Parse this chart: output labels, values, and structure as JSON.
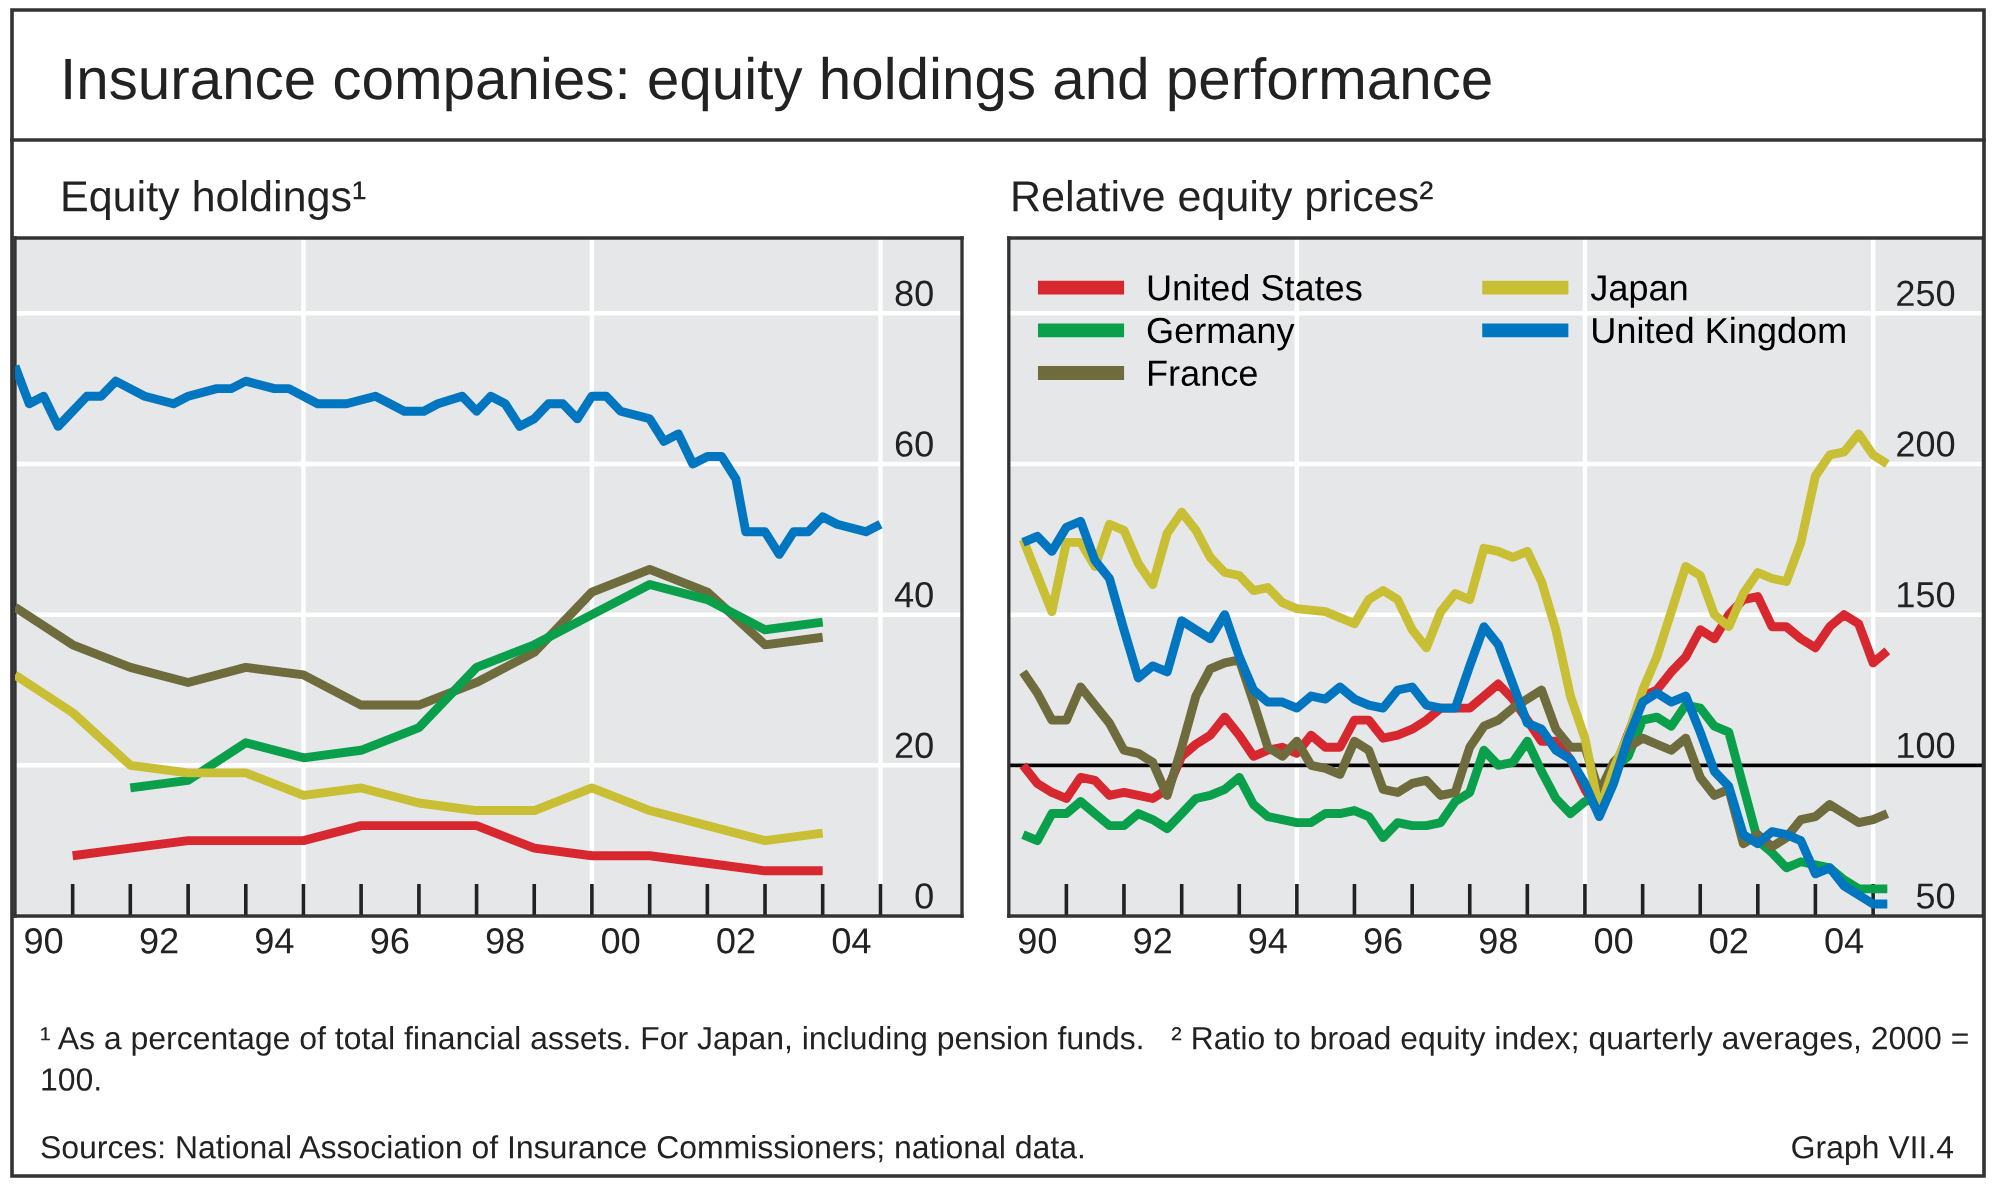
{
  "chart_data": [
    {
      "type": "line",
      "title": "Insurance companies: equity holdings and performance",
      "subtitle": "Equity holdings¹",
      "xlim": [
        "1990-01-01",
        "2006-06-01"
      ],
      "ylim": [
        0,
        90
      ],
      "yticks": [
        0,
        20,
        40,
        60,
        80
      ],
      "xticks": [
        {
          "value": "1990-07",
          "label": "90"
        },
        {
          "value": "1992-07",
          "label": "92"
        },
        {
          "value": "1994-07",
          "label": "94"
        },
        {
          "value": "1996-07",
          "label": "96"
        },
        {
          "value": "1998-07",
          "label": "98"
        },
        {
          "value": "2000-07",
          "label": "00"
        },
        {
          "value": "2002-07",
          "label": "02"
        },
        {
          "value": "2004-07",
          "label": "04"
        }
      ],
      "grid": "y",
      "marker": "none",
      "line_style": "solid",
      "ref_lines": [
        {
          "axis": "x",
          "value": "1995",
          "color": "#ffffff"
        },
        {
          "axis": "x",
          "value": "2000",
          "color": "#ffffff"
        },
        {
          "axis": "x",
          "value": "2005",
          "color": "#ffffff"
        }
      ],
      "series": [
        {
          "color": "#0076c0",
          "x": [
            "1990-01",
            "1990-04",
            "1990-07",
            "1990-10",
            "1991-04",
            "1991-07",
            "1991-10",
            "1992-04",
            "1992-10",
            "1993-01",
            "1993-07",
            "1993-10",
            "1994-01",
            "1994-07",
            "1994-10",
            "1995-04",
            "1995-10",
            "1996-04",
            "1996-10",
            "1997-02",
            "1997-05",
            "1997-10",
            "1998-01",
            "1998-04",
            "1998-07",
            "1998-10",
            "1999-01",
            "1999-04",
            "1999-07",
            "1999-10",
            "2000-01",
            "2000-04",
            "2000-07",
            "2001-01",
            "2001-04",
            "2001-07",
            "2001-10",
            "2002-01",
            "2002-04",
            "2002-07",
            "2002-09",
            "2003-01",
            "2003-04",
            "2003-07",
            "2003-10",
            "2004-01",
            "2004-04",
            "2004-10",
            "2005-01"
          ],
          "values": [
            73,
            68,
            69,
            65,
            69,
            69,
            71,
            69,
            68,
            69,
            70,
            70,
            71,
            70,
            70,
            68,
            68,
            69,
            67,
            67,
            68,
            69,
            67,
            69,
            68,
            65,
            66,
            68,
            68,
            66,
            69,
            69,
            67,
            66,
            63,
            64,
            60,
            61,
            61,
            58,
            51,
            51,
            48,
            51,
            51,
            53,
            52,
            51,
            52
          ]
        },
        {
          "color": "#6e6b3d",
          "x": [
            "1990",
            "1991",
            "1992",
            "1993",
            "1994",
            "1995",
            "1996",
            "1997",
            "1998",
            "1999",
            "2000",
            "2001",
            "2002",
            "2003",
            "2004"
          ],
          "values": [
            41,
            36,
            33,
            31,
            33,
            32,
            28,
            28,
            31,
            35,
            43,
            46,
            43,
            36,
            37
          ]
        },
        {
          "color": "#0aa04b",
          "x": [
            "1992",
            "1993",
            "1994",
            "1995",
            "1996",
            "1997",
            "1998",
            "1999",
            "2000",
            "2001",
            "2002",
            "2003",
            "2004"
          ],
          "values": [
            17,
            18,
            23,
            21,
            22,
            25,
            33,
            36,
            40,
            44,
            42,
            38,
            39
          ]
        },
        {
          "color": "#c8bf35",
          "x": [
            "1990",
            "1991",
            "1992",
            "1993",
            "1994",
            "1995",
            "1996",
            "1997",
            "1998",
            "1999",
            "2000",
            "2001",
            "2002",
            "2003",
            "2004"
          ],
          "values": [
            32,
            27,
            20,
            19,
            19,
            16,
            17,
            15,
            14,
            14,
            17,
            14,
            12,
            10,
            11
          ]
        },
        {
          "color": "#d7282f",
          "x": [
            "1991",
            "1992",
            "1993",
            "1994",
            "1995",
            "1996",
            "1997",
            "1998",
            "1999",
            "2000",
            "2001",
            "2002",
            "2003",
            "2004"
          ],
          "values": [
            8,
            9,
            10,
            10,
            10,
            12,
            12,
            12,
            9,
            8,
            8,
            7,
            6,
            6
          ]
        }
      ],
      "annotations": [
        "¹ As a percentage of total financial assets. For Japan, including pension funds.   ² Ratio to broad equity index; quarterly averages, 2000 = 100.",
        "Sources: National Association of Insurance Commissioners; national data.",
        "Graph VII.4"
      ]
    },
    {
      "type": "line",
      "title": "Relative equity prices²",
      "xlim": [
        "1990-01-01",
        "2006-12-01"
      ],
      "ylim": [
        50,
        275
      ],
      "yticks": [
        50,
        100,
        150,
        200,
        250
      ],
      "xticks": [
        {
          "value": "1990-07",
          "label": "90"
        },
        {
          "value": "1992-07",
          "label": "92"
        },
        {
          "value": "1994-07",
          "label": "94"
        },
        {
          "value": "1996-07",
          "label": "96"
        },
        {
          "value": "1998-07",
          "label": "98"
        },
        {
          "value": "2000-07",
          "label": "00"
        },
        {
          "value": "2002-07",
          "label": "02"
        },
        {
          "value": "2004-07",
          "label": "04"
        }
      ],
      "grid": "y",
      "legend": "top left",
      "marker": "none",
      "line_style": "solid",
      "ref_lines": [
        {
          "axis": "x",
          "value": "1995",
          "color": "#ffffff"
        },
        {
          "axis": "x",
          "value": "2000",
          "color": "#ffffff"
        },
        {
          "axis": "x",
          "value": "2005",
          "color": "#ffffff"
        },
        {
          "axis": "y",
          "value": 100,
          "color": "#000000"
        }
      ],
      "series": [
        {
          "name": "United States",
          "color": "#d7282f",
          "x": [
            "1990-04",
            "1990-07",
            "1990-10",
            "1991-01",
            "1991-04",
            "1991-07",
            "1991-10",
            "1992-01",
            "1992-04",
            "1992-07",
            "1992-10",
            "1993-01",
            "1993-04",
            "1993-07",
            "1993-10",
            "1994-01",
            "1994-04",
            "1994-07",
            "1994-10",
            "1995-01",
            "1995-04",
            "1995-07",
            "1995-10",
            "1996-01",
            "1996-04",
            "1996-07",
            "1996-10",
            "1997-01",
            "1997-04",
            "1997-07",
            "1997-10",
            "1998-01",
            "1998-04",
            "1998-07",
            "1998-10",
            "1999-01",
            "1999-04",
            "1999-07",
            "1999-10",
            "2000-01",
            "2000-04",
            "2000-07",
            "2001-01",
            "2001-04",
            "2001-07",
            "2001-10",
            "2002-01",
            "2002-04",
            "2002-07",
            "2002-10",
            "2003-01",
            "2003-04",
            "2003-07",
            "2003-10",
            "2004-01",
            "2004-04",
            "2004-07",
            "2004-10",
            "2005-01",
            "2005-04"
          ],
          "values": [
            100,
            94,
            91,
            89,
            96,
            95,
            90,
            91,
            90,
            89,
            92,
            103,
            107,
            110,
            116,
            110,
            103,
            105,
            106,
            104,
            110,
            106,
            106,
            115,
            115,
            109,
            110,
            112,
            115,
            119,
            119,
            119,
            123,
            127,
            122,
            115,
            108,
            108,
            102,
            92,
            84,
            98,
            123,
            125,
            131,
            136,
            145,
            142,
            150,
            155,
            156,
            146,
            146,
            142,
            139,
            146,
            150,
            147,
            134,
            138
          ]
        },
        {
          "name": "Germany",
          "color": "#0aa04b",
          "x": [
            "1990-04",
            "1990-07",
            "1990-10",
            "1991-01",
            "1991-04",
            "1991-07",
            "1991-10",
            "1992-01",
            "1992-04",
            "1992-07",
            "1992-10",
            "1993-01",
            "1993-04",
            "1993-07",
            "1993-10",
            "1994-01",
            "1994-04",
            "1994-07",
            "1994-10",
            "1995-01",
            "1995-04",
            "1995-07",
            "1995-10",
            "1996-01",
            "1996-04",
            "1996-07",
            "1996-10",
            "1997-01",
            "1997-04",
            "1997-07",
            "1997-10",
            "1998-01",
            "1998-04",
            "1998-07",
            "1998-10",
            "1999-01",
            "1999-04",
            "1999-07",
            "1999-10",
            "2000-01",
            "2000-04",
            "2000-07",
            "2000-10",
            "2001-01",
            "2001-04",
            "2001-07",
            "2001-10",
            "2002-01",
            "2002-04",
            "2002-07",
            "2002-10",
            "2003-01",
            "2003-04",
            "2003-07",
            "2003-10",
            "2004-01",
            "2004-04",
            "2004-07",
            "2004-10",
            "2005-01",
            "2005-04"
          ],
          "values": [
            77,
            75,
            84,
            84,
            88,
            84,
            80,
            80,
            84,
            82,
            79,
            84,
            89,
            90,
            92,
            96,
            87,
            83,
            82,
            81,
            81,
            84,
            84,
            85,
            83,
            76,
            81,
            80,
            80,
            81,
            88,
            91,
            105,
            100,
            101,
            108,
            98,
            89,
            84,
            88,
            89,
            99,
            103,
            115,
            116,
            113,
            120,
            119,
            113,
            111,
            93,
            75,
            71,
            66,
            68,
            67,
            66,
            62,
            59,
            59,
            59
          ]
        },
        {
          "name": "France",
          "color": "#6e6b3d",
          "x": [
            "1990-04",
            "1990-07",
            "1990-10",
            "1991-01",
            "1991-04",
            "1991-07",
            "1991-10",
            "1992-01",
            "1992-04",
            "1992-07",
            "1992-10",
            "1993-01",
            "1993-04",
            "1993-07",
            "1993-10",
            "1994-01",
            "1994-04",
            "1994-07",
            "1994-10",
            "1995-01",
            "1995-04",
            "1995-07",
            "1995-10",
            "1996-01",
            "1996-04",
            "1996-07",
            "1996-10",
            "1997-01",
            "1997-04",
            "1997-07",
            "1997-10",
            "1998-01",
            "1998-04",
            "1998-07",
            "1998-10",
            "1999-01",
            "1999-04",
            "1999-07",
            "1999-10",
            "2000-01",
            "2000-04",
            "2000-07",
            "2000-10",
            "2001-01",
            "2001-04",
            "2001-07",
            "2001-10",
            "2002-01",
            "2002-04",
            "2002-07",
            "2002-10",
            "2003-01",
            "2003-04",
            "2003-07",
            "2003-10",
            "2004-01",
            "2004-04",
            "2004-07",
            "2004-10",
            "2005-01",
            "2005-04"
          ],
          "values": [
            131,
            124,
            115,
            115,
            126,
            120,
            114,
            105,
            104,
            101,
            90,
            106,
            123,
            132,
            134,
            135,
            121,
            106,
            103,
            108,
            100,
            99,
            97,
            108,
            105,
            92,
            91,
            94,
            95,
            90,
            91,
            106,
            113,
            115,
            119,
            122,
            125,
            112,
            106,
            106,
            91,
            101,
            106,
            109,
            107,
            105,
            109,
            96,
            90,
            92,
            74,
            77,
            73,
            76,
            82,
            83,
            87,
            84,
            81,
            82,
            84
          ]
        },
        {
          "name": "Japan",
          "color": "#c8bf35",
          "x": [
            "1990-04",
            "1990-10",
            "1991-01",
            "1991-04",
            "1991-07",
            "1991-10",
            "1992-01",
            "1992-04",
            "1992-07",
            "1992-10",
            "1993-01",
            "1993-04",
            "1993-07",
            "1993-10",
            "1994-01",
            "1994-04",
            "1994-07",
            "1994-10",
            "1995-01",
            "1995-07",
            "1996-01",
            "1996-04",
            "1996-07",
            "1996-10",
            "1997-01",
            "1997-04",
            "1997-07",
            "1997-10",
            "1998-01",
            "1998-04",
            "1998-07",
            "1998-10",
            "1999-01",
            "1999-04",
            "1999-07",
            "1999-10",
            "2000-01",
            "2000-04",
            "2000-07",
            "2000-10",
            "2001-01",
            "2001-04",
            "2001-10",
            "2002-01",
            "2002-04",
            "2002-07",
            "2002-10",
            "2003-01",
            "2003-04",
            "2003-07",
            "2003-10",
            "2004-01",
            "2004-04",
            "2004-07",
            "2004-10",
            "2005-01",
            "2005-04"
          ],
          "values": [
            175,
            151,
            174,
            174,
            166,
            180,
            178,
            167,
            160,
            177,
            184,
            178,
            169,
            164,
            163,
            158,
            159,
            154,
            152,
            151,
            147,
            155,
            158,
            155,
            145,
            139,
            151,
            157,
            155,
            172,
            171,
            169,
            171,
            161,
            145,
            123,
            109,
            85,
            99,
            110,
            125,
            136,
            166,
            163,
            150,
            146,
            157,
            164,
            162,
            161,
            174,
            196,
            203,
            204,
            210,
            203,
            200
          ]
        },
        {
          "name": "United Kingdom",
          "color": "#0076c0",
          "x": [
            "1990-04",
            "1990-07",
            "1990-10",
            "1991-01",
            "1991-04",
            "1991-07",
            "1991-10",
            "1992-01",
            "1992-04",
            "1992-07",
            "1992-10",
            "1993-01",
            "1993-04",
            "1993-07",
            "1993-10",
            "1994-01",
            "1994-04",
            "1994-07",
            "1994-10",
            "1995-01",
            "1995-04",
            "1995-07",
            "1995-10",
            "1996-01",
            "1996-04",
            "1996-07",
            "1996-10",
            "1997-01",
            "1997-04",
            "1997-07",
            "1997-10",
            "1998-01",
            "1998-04",
            "1998-07",
            "1998-10",
            "1999-01",
            "1999-04",
            "1999-07",
            "1999-10",
            "2000-01",
            "2000-04",
            "2000-07",
            "2000-10",
            "2001-01",
            "2001-04",
            "2001-07",
            "2001-10",
            "2002-01",
            "2002-04",
            "2002-07",
            "2002-10",
            "2003-01",
            "2003-04",
            "2003-07",
            "2003-10",
            "2004-01",
            "2004-04",
            "2004-07",
            "2004-10",
            "2005-01",
            "2005-04"
          ],
          "values": [
            174,
            176,
            171,
            179,
            181,
            168,
            162,
            145,
            129,
            133,
            131,
            148,
            145,
            142,
            150,
            136,
            125,
            121,
            121,
            119,
            123,
            122,
            126,
            122,
            120,
            119,
            125,
            126,
            120,
            119,
            119,
            133,
            146,
            140,
            127,
            114,
            112,
            105,
            102,
            94,
            83,
            94,
            109,
            121,
            124,
            121,
            123,
            111,
            98,
            93,
            77,
            74,
            78,
            77,
            75,
            64,
            66,
            60,
            57,
            54,
            54
          ]
        }
      ]
    }
  ]
}
